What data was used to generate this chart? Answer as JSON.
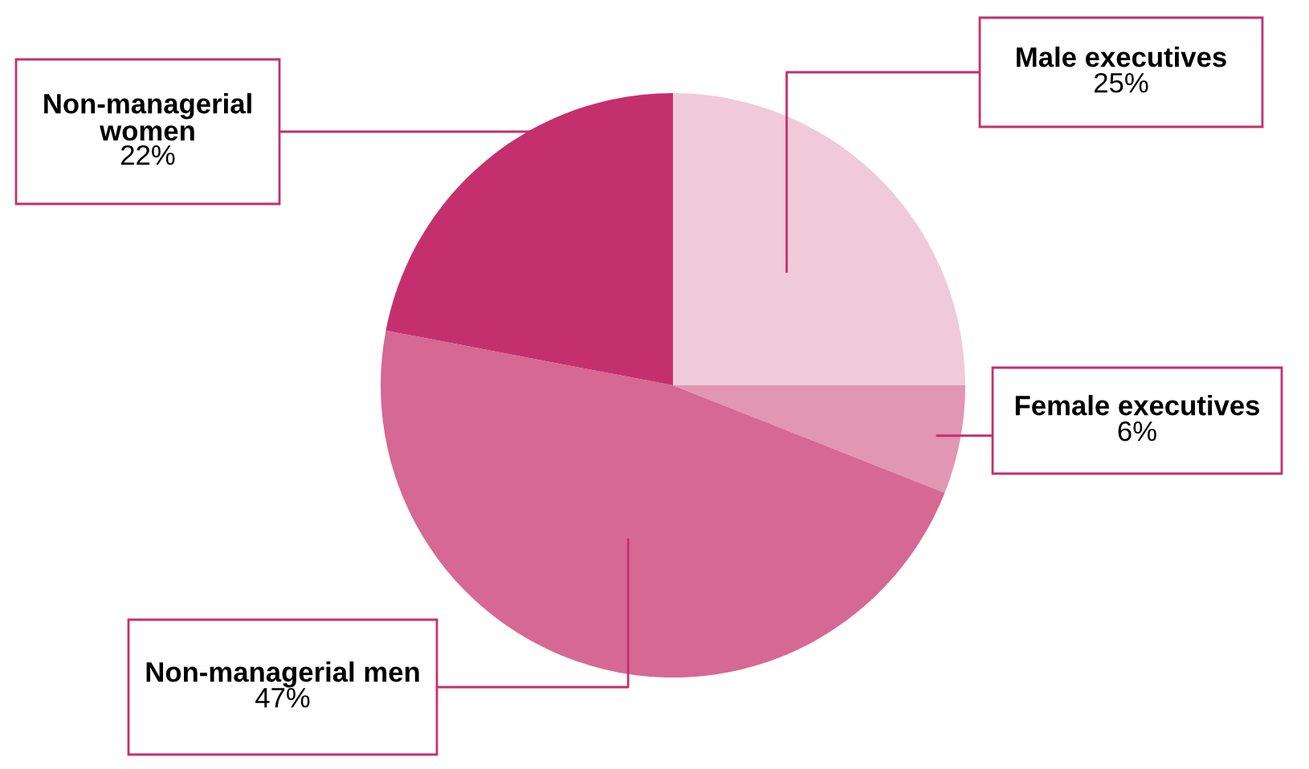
{
  "chart_data": {
    "type": "pie",
    "categories": [
      "Male executives",
      "Female executives",
      "Non-managerial men",
      "Non-managerial women"
    ],
    "values": [
      25,
      6,
      47,
      22
    ],
    "value_labels": [
      "25%",
      "6%",
      "47%",
      "22%"
    ],
    "colors": [
      "#f0cad8",
      "#e196b4",
      "#d66894",
      "#c4306e"
    ],
    "legend": false
  }
}
